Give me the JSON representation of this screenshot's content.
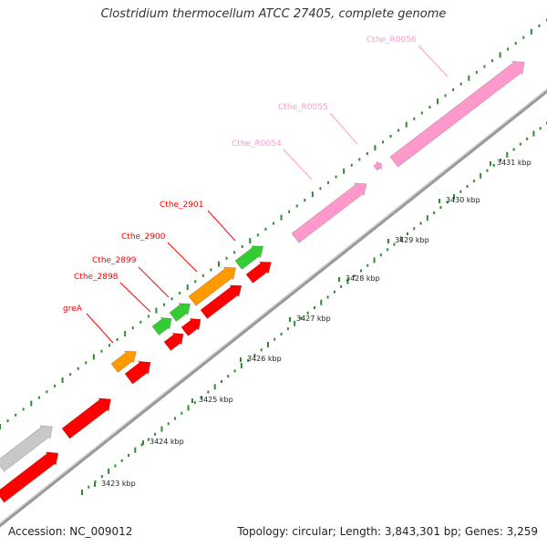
{
  "title": "Clostridium thermocellum ATCC 27405, complete genome",
  "footer": {
    "accession": "Accession: NC_009012",
    "stats": "Topology: circular; Length: 3,843,301 bp; Genes: 3,259"
  },
  "colors": {
    "cds_red": "#ff0000",
    "cds_orange": "#ff9900",
    "cds_green": "#33cc33",
    "rna_pink": "#ff99cc",
    "unknown_gray": "#c8c8c8",
    "backbone": "#888888",
    "tick_green": "#2e8b2e"
  },
  "kbp_ticks": [
    {
      "label": "3423 kbp"
    },
    {
      "label": "3424 kbp"
    },
    {
      "label": "3425 kbp"
    },
    {
      "label": "3426 kbp"
    },
    {
      "label": "3427 kbp"
    },
    {
      "label": "3428 kbp"
    },
    {
      "label": "3429 kbp"
    },
    {
      "label": "3430 kbp"
    },
    {
      "label": "3431 kbp"
    }
  ],
  "gene_labels": [
    {
      "text": "greA",
      "color": "red"
    },
    {
      "text": "Cthe_2898",
      "color": "red"
    },
    {
      "text": "Cthe_2899",
      "color": "red"
    },
    {
      "text": "Cthe_2900",
      "color": "red"
    },
    {
      "text": "Cthe_2901",
      "color": "red"
    },
    {
      "text": "Cthe_R0054",
      "color": "pink"
    },
    {
      "text": "Cthe_R0055",
      "color": "pink"
    },
    {
      "text": "Cthe_R0056",
      "color": "pink"
    }
  ]
}
